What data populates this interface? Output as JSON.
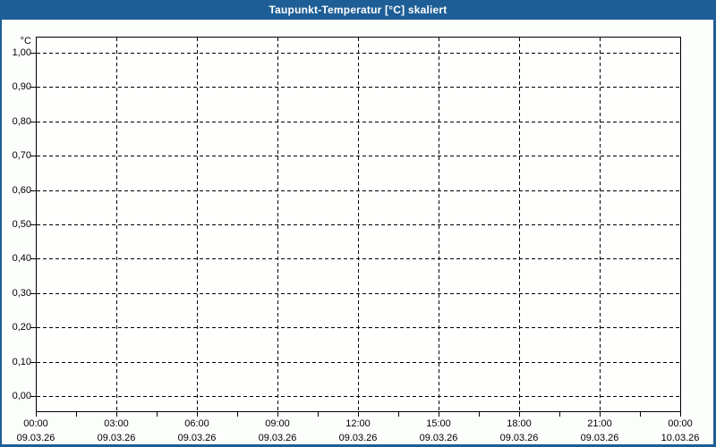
{
  "window": {
    "title": "Taupunkt-Temperatur [°C] skaliert"
  },
  "colors": {
    "titlebar": "#1e5e96",
    "window_border": "#1e5e96",
    "background": "#fcfefc",
    "plot_background": "#fffffe",
    "grid": "#000000",
    "title_text": "#ffffff",
    "label_text": "#000000"
  },
  "chart_data": {
    "type": "line",
    "title": "Taupunkt-Temperatur [°C] skaliert",
    "series": [],
    "y_axis": {
      "unit": "°C",
      "min": 0.0,
      "max": 1.0,
      "step": 0.1,
      "tick_labels": [
        "0,00",
        "0,10",
        "0,20",
        "0,30",
        "0,40",
        "0,50",
        "0,60",
        "0,70",
        "0,80",
        "0,90",
        "1,00"
      ]
    },
    "x_axis": {
      "hours_span": 24,
      "major_step_hours": 3,
      "minor_step_hours": 1.5,
      "tick_times": [
        "00:00",
        "03:00",
        "06:00",
        "09:00",
        "12:00",
        "15:00",
        "18:00",
        "21:00",
        "00:00"
      ],
      "tick_dates": [
        "09.03.26",
        "09.03.26",
        "09.03.26",
        "09.03.26",
        "09.03.26",
        "09.03.26",
        "09.03.26",
        "09.03.26",
        "10.03.26"
      ]
    },
    "grid": {
      "style": "dashed",
      "horizontal": true,
      "vertical": true
    }
  }
}
